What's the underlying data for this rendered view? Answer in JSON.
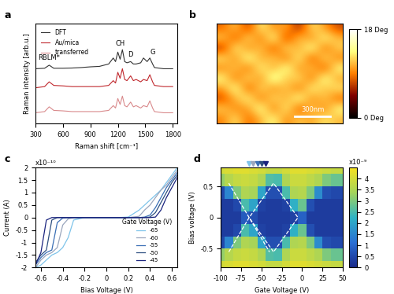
{
  "chart_data": [
    {
      "title": "a",
      "type": "line",
      "x_label": "Raman shift [cm⁻¹]",
      "y_label": "Raman intensity [arb.u.]",
      "x": [
        300,
        400,
        450,
        500,
        600,
        700,
        800,
        900,
        1000,
        1100,
        1150,
        1175,
        1200,
        1225,
        1250,
        1275,
        1300,
        1340,
        1370,
        1400,
        1450,
        1480,
        1520,
        1550,
        1580,
        1600,
        1700,
        1800
      ],
      "series": [
        {
          "name": "DFT",
          "color": "#333333",
          "values": [
            2.3,
            2.32,
            2.45,
            2.32,
            2.32,
            2.33,
            2.35,
            2.38,
            2.4,
            2.5,
            2.75,
            2.6,
            3.0,
            2.7,
            3.1,
            2.6,
            2.55,
            2.6,
            2.5,
            2.5,
            2.55,
            2.75,
            2.6,
            2.75,
            2.5,
            2.35,
            2.3,
            2.3
          ]
        },
        {
          "name": "Au/mica",
          "color": "#c0282d",
          "values": [
            1.5,
            1.55,
            1.75,
            1.6,
            1.58,
            1.55,
            1.55,
            1.55,
            1.55,
            1.6,
            1.8,
            1.7,
            2.15,
            1.9,
            2.3,
            1.85,
            1.8,
            2.0,
            1.8,
            1.85,
            1.75,
            1.85,
            1.8,
            2.05,
            1.75,
            1.6,
            1.55,
            1.55
          ]
        },
        {
          "name": "transferred",
          "color": "#d98a8c",
          "values": [
            0.45,
            0.5,
            0.7,
            0.55,
            0.53,
            0.5,
            0.5,
            0.5,
            0.5,
            0.55,
            0.75,
            0.65,
            1.05,
            0.8,
            1.15,
            0.75,
            0.7,
            0.9,
            0.7,
            0.75,
            0.65,
            0.75,
            0.7,
            0.95,
            0.65,
            0.5,
            0.45,
            0.45
          ]
        }
      ],
      "xlim": [
        300,
        1850
      ],
      "xticks": [
        300,
        600,
        900,
        1200,
        1500,
        1800
      ],
      "ylim": [
        0,
        4.2
      ],
      "tick_labels": "x",
      "legend": "upper left",
      "annotations": [
        {
          "text": "RBLM*",
          "x": 450,
          "y": 2.6
        },
        {
          "text": "CH",
          "x": 1225,
          "y": 3.2
        },
        {
          "text": "D",
          "x": 1340,
          "y": 2.75
        },
        {
          "text": "G",
          "x": 1580,
          "y": 2.85
        }
      ]
    },
    {
      "title": "b",
      "type": "image",
      "tick_labels": false,
      "scale_bar": "300nm",
      "cells": [
        [
          8,
          12,
          6,
          14,
          9,
          11,
          5,
          13,
          10,
          7
        ],
        [
          12,
          7,
          13,
          8,
          15,
          6,
          12,
          9,
          14,
          11
        ],
        [
          6,
          14,
          9,
          12,
          7,
          13,
          10,
          15,
          8,
          12
        ],
        [
          13,
          9,
          15,
          10,
          12,
          8,
          14,
          7,
          13,
          9
        ],
        [
          9,
          12,
          8,
          14,
          10,
          15,
          9,
          12,
          7,
          14
        ],
        [
          14,
          8,
          13,
          9,
          16,
          11,
          13,
          8,
          15,
          10
        ],
        [
          10,
          15,
          7,
          13,
          9,
          12,
          8,
          14,
          11,
          13
        ],
        [
          7,
          11,
          14,
          8,
          13,
          10,
          15,
          9,
          12,
          8
        ],
        [
          12,
          9,
          10,
          15,
          8,
          14,
          7,
          12,
          9,
          14
        ],
        [
          9,
          13,
          8,
          11,
          14,
          9,
          12,
          10,
          13,
          11
        ]
      ],
      "colorbar": {
        "range": [
          0,
          18
        ],
        "ticks": [
          {
            "value": 0,
            "label": "0 Deg"
          },
          {
            "value": 18,
            "label": "18 Deg"
          }
        ]
      }
    },
    {
      "title": "c",
      "type": "line",
      "x_label": "Bias Voltage (V)",
      "y_label": "Current (A)",
      "y_multiplier": "x10⁻¹⁰",
      "legend_title": "Gate Voltage (V)",
      "legend": "lower right",
      "x": [
        -0.65,
        -0.6,
        -0.55,
        -0.5,
        -0.45,
        -0.4,
        -0.35,
        -0.3,
        -0.2,
        -0.1,
        0,
        0.1,
        0.2,
        0.3,
        0.35,
        0.4,
        0.45,
        0.5,
        0.55,
        0.6,
        0.65
      ],
      "series": [
        {
          "name": "-65",
          "color": "#7fc4ea",
          "values": [
            -2.0,
            -1.9,
            -1.7,
            -1.5,
            -1.4,
            -1.2,
            -0.8,
            -0.1,
            0,
            0,
            0,
            0,
            0.02,
            0.3,
            0.5,
            0.7,
            0.9,
            1.1,
            1.4,
            1.7,
            2.0
          ]
        },
        {
          "name": "-60",
          "color": "#9aa6bd",
          "values": [
            -2.0,
            -1.7,
            -1.5,
            -1.4,
            -1.2,
            -0.3,
            -0.05,
            0,
            0,
            0,
            0,
            0,
            0,
            0.05,
            0.3,
            0.5,
            0.8,
            1.1,
            1.3,
            1.6,
            1.9
          ]
        },
        {
          "name": "-55",
          "color": "#3a6fb5",
          "values": [
            -1.9,
            -1.6,
            -1.4,
            -1.3,
            -0.2,
            -0.02,
            0,
            0,
            0,
            0,
            0,
            0,
            0,
            0,
            0.02,
            0.1,
            0.4,
            0.8,
            1.2,
            1.5,
            1.8
          ]
        },
        {
          "name": "-50",
          "color": "#2e4f80",
          "values": [
            -1.8,
            -1.5,
            -1.3,
            -0.1,
            0,
            0,
            0,
            0,
            0,
            0,
            0,
            0,
            0,
            0,
            0,
            0.02,
            0.2,
            0.6,
            1.0,
            1.4,
            1.7
          ]
        },
        {
          "name": "-45",
          "color": "#1a237e",
          "values": [
            -1.9,
            -1.4,
            -0.1,
            0,
            0,
            0,
            0,
            0,
            0,
            0,
            0,
            0,
            0,
            0,
            0,
            0,
            0.02,
            0.3,
            0.8,
            1.2,
            1.6
          ]
        }
      ],
      "xlim": [
        -0.65,
        0.65
      ],
      "xticks": [
        -0.6,
        -0.4,
        -0.2,
        0,
        0.2,
        0.4,
        0.6
      ],
      "ylim": [
        -2,
        2
      ],
      "yticks": [
        -2,
        -1.5,
        -1,
        -0.5,
        0,
        0.5,
        1,
        1.5,
        2
      ]
    },
    {
      "title": "d",
      "type": "heatmap",
      "x_label": "Gate Voltage (V)",
      "y_label": "Bias voltage (V)",
      "x": [
        -100,
        -90,
        -80,
        -70,
        -60,
        -50,
        -40,
        -30,
        -20,
        -10,
        0,
        10,
        20,
        30,
        40,
        50
      ],
      "y": [
        -0.8,
        -0.6,
        -0.4,
        -0.2,
        0,
        0.2,
        0.4,
        0.6,
        0.8
      ],
      "cells": [
        [
          4.0,
          4.1,
          4.2,
          4.2,
          4.1,
          4.0,
          3.8,
          3.8,
          4.0,
          4.2,
          4.2,
          4.1,
          4.0,
          3.9,
          3.8,
          3.8
        ],
        [
          3.2,
          3.6,
          3.8,
          3.9,
          3.8,
          3.5,
          2.6,
          2.5,
          3.5,
          3.9,
          3.9,
          3.7,
          3.5,
          3.0,
          2.8,
          2.8
        ],
        [
          0.5,
          1.5,
          3.0,
          3.5,
          3.4,
          2.0,
          0.6,
          0.6,
          2.5,
          3.5,
          3.6,
          3.0,
          1.6,
          0.6,
          0.5,
          0.5
        ],
        [
          0.3,
          0.3,
          0.5,
          2.5,
          2.0,
          0.4,
          0.3,
          0.3,
          0.4,
          2.2,
          2.8,
          0.6,
          0.3,
          0.3,
          0.3,
          0.3
        ],
        [
          0.3,
          0.3,
          0.3,
          0.8,
          0.6,
          0.3,
          0.3,
          0.3,
          0.3,
          0.4,
          0.9,
          0.3,
          0.3,
          0.3,
          0.3,
          0.3
        ],
        [
          0.3,
          0.3,
          0.5,
          2.5,
          2.0,
          0.4,
          0.3,
          0.3,
          0.4,
          2.2,
          2.8,
          0.6,
          0.3,
          0.3,
          0.3,
          0.3
        ],
        [
          0.5,
          1.5,
          3.0,
          3.5,
          3.4,
          2.0,
          0.6,
          0.6,
          2.5,
          3.5,
          3.6,
          3.0,
          1.6,
          0.6,
          0.5,
          0.5
        ],
        [
          3.2,
          3.6,
          3.8,
          3.9,
          3.8,
          3.5,
          2.6,
          2.5,
          3.5,
          3.9,
          3.9,
          3.7,
          3.5,
          3.0,
          2.8,
          2.8
        ],
        [
          4.0,
          4.1,
          4.2,
          4.2,
          4.1,
          4.0,
          3.8,
          3.8,
          4.0,
          4.2,
          4.2,
          4.1,
          4.0,
          3.9,
          3.8,
          3.8
        ]
      ],
      "xlim": [
        -100,
        50
      ],
      "xticks": [
        -100,
        -75,
        -50,
        -25,
        0,
        25,
        50
      ],
      "ylim": [
        -0.8,
        0.8
      ],
      "yticks": [
        -0.5,
        0,
        0.5
      ],
      "colorbar": {
        "range": [
          0,
          4.5
        ],
        "ticks": [
          0,
          0.5,
          1,
          1.5,
          2,
          2.5,
          3,
          3.5,
          4
        ],
        "multiplier": "x10⁻⁹"
      },
      "guide_lines": [
        {
          "x": [
            -90,
            -65,
            -40
          ],
          "y": [
            0.55,
            0,
            -0.55
          ]
        },
        {
          "x": [
            -90,
            -65,
            -35,
            -5,
            -35,
            -65
          ],
          "y": [
            -0.55,
            0,
            0.55,
            0,
            -0.55,
            0
          ]
        }
      ],
      "gate_markers": {
        "x": [
          -65,
          -60,
          -55,
          -50,
          -45
        ],
        "colors": [
          "#7fc4ea",
          "#9aa6bd",
          "#3a6fb5",
          "#2e4f80",
          "#1a237e"
        ]
      }
    }
  ]
}
